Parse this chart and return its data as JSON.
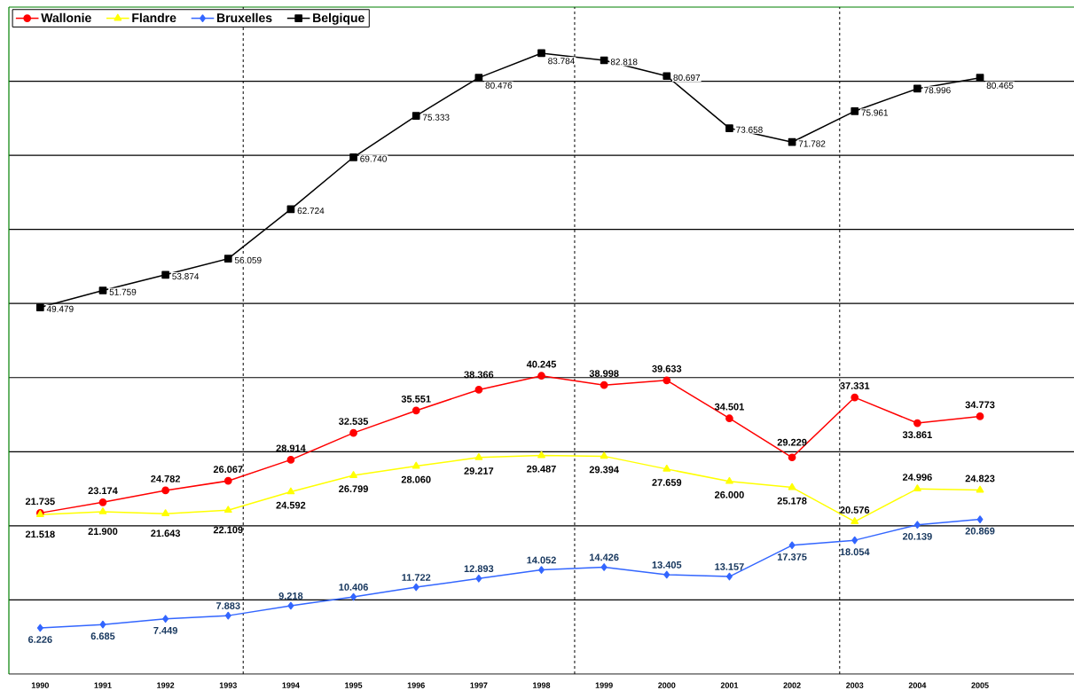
{
  "chart_data": {
    "type": "line",
    "x": [
      1990,
      1991,
      1992,
      1993,
      1994,
      1995,
      1996,
      1997,
      1998,
      1999,
      2000,
      2001,
      2002,
      2003,
      2004,
      2005
    ],
    "xlim": [
      1989.5,
      2006.5
    ],
    "xticks": [
      1990,
      1991,
      1992,
      1993,
      1994,
      1995,
      1996,
      1997,
      1998,
      1999,
      2000,
      2001,
      2002,
      2003,
      2004,
      2005
    ],
    "ylim": [
      0,
      90
    ],
    "yticks": [
      {
        "value": 10,
        "label": null
      },
      {
        "value": 20,
        "label": null
      },
      {
        "value": 30,
        "label": null
      },
      {
        "value": 40,
        "label": null
      },
      {
        "value": 50,
        "label": null
      },
      {
        "value": 60,
        "label": null
      },
      {
        "value": 70,
        "label": null
      },
      {
        "value": 80,
        "label": null
      }
    ],
    "tick_labels": "x",
    "grid": "y",
    "legend": "top left",
    "ref_lines": [
      {
        "axis": "x",
        "value": 1993.24,
        "color": "#000000",
        "line_style": "dashed"
      },
      {
        "axis": "x",
        "value": 1998.53,
        "color": "#000000",
        "line_style": "dashed"
      },
      {
        "axis": "x",
        "value": 2002.76,
        "color": "#000000",
        "line_style": "dashed"
      }
    ],
    "series": [
      {
        "name": "Wallonie",
        "color": "#ff0000",
        "marker": "circle",
        "values": [
          21.735,
          23.174,
          24.782,
          26.067,
          28.914,
          32.535,
          35.551,
          38.366,
          40.245,
          38.998,
          39.633,
          34.501,
          29.229,
          37.331,
          33.861,
          34.773
        ],
        "value_labels": [
          "21.735",
          "23.174",
          "24.782",
          "26.067",
          "28.914",
          "32.535",
          "35.551",
          "38.366",
          "40.245",
          "38.998",
          "39.633",
          "34.501",
          "29.229",
          "37.331",
          "33.861",
          "34.773"
        ]
      },
      {
        "name": "Flandre",
        "color": "#ffff00",
        "marker": "triangle",
        "values": [
          21.518,
          21.9,
          21.643,
          22.109,
          24.592,
          26.799,
          28.06,
          29.217,
          29.487,
          29.394,
          27.659,
          26.0,
          25.178,
          20.576,
          24.996,
          24.823
        ],
        "value_labels": [
          "21.518",
          "21.900",
          "21.643",
          "22.109",
          "24.592",
          "26.799",
          "28.060",
          "29.217",
          "29.487",
          "29.394",
          "27.659",
          "26.000",
          "25.178",
          "20.576",
          "24.996",
          "24.823"
        ]
      },
      {
        "name": "Bruxelles",
        "color": "#3366ff",
        "marker": "diamond",
        "values": [
          6.226,
          6.685,
          7.449,
          7.883,
          9.218,
          10.406,
          11.722,
          12.893,
          14.052,
          14.426,
          13.405,
          13.157,
          17.375,
          18.054,
          20.139,
          20.869
        ],
        "value_labels": [
          "6.226",
          "6.685",
          "7.449",
          "7.883",
          "9.218",
          "10.406",
          "11.722",
          "12.893",
          "14.052",
          "14.426",
          "13.405",
          "13.157",
          "17.375",
          "18.054",
          "20.139",
          "20.869"
        ]
      },
      {
        "name": "Belgique",
        "color": "#000000",
        "marker": "square",
        "values": [
          49.479,
          51.759,
          53.874,
          56.059,
          62.724,
          69.74,
          75.333,
          80.476,
          83.784,
          82.818,
          80.697,
          73.658,
          71.782,
          75.961,
          78.996,
          80.465
        ],
        "value_labels": [
          "49.479",
          "51.759",
          "53.874",
          "56.059",
          "62.724",
          "69.740",
          "75.333",
          "80.476",
          "83.784",
          "82.818",
          "80.697",
          "73.658",
          "71.782",
          "75.961",
          "78.996",
          "80.465"
        ]
      }
    ]
  }
}
